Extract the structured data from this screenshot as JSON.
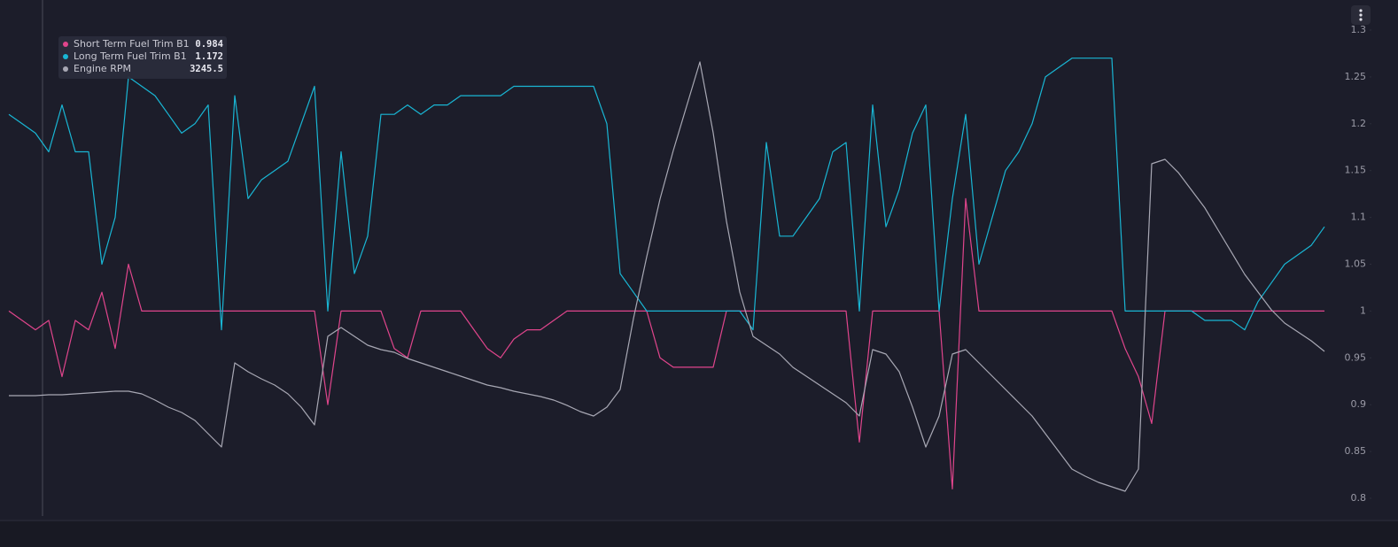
{
  "chart_data": {
    "type": "line",
    "ylim": [
      0.8,
      1.3
    ],
    "yticks": [
      0.8,
      0.85,
      0.9,
      0.95,
      1,
      1.05,
      1.1,
      1.15,
      1.2,
      1.25,
      1.3
    ],
    "y2lim": [
      2000,
      7660
    ],
    "grid": false,
    "series": [
      {
        "name": "Short Term Fuel Trim B1",
        "color": "#e0458c",
        "cursor_value": 0.984,
        "values": [
          1.0,
          0.99,
          0.98,
          0.99,
          0.93,
          0.99,
          0.98,
          1.02,
          0.96,
          1.05,
          1.0,
          1.0,
          1.0,
          1.0,
          1.0,
          1.0,
          1.0,
          1.0,
          1.0,
          1.0,
          1.0,
          1.0,
          1.0,
          1.0,
          0.9,
          1.0,
          1.0,
          1.0,
          1.0,
          0.96,
          0.95,
          1.0,
          1.0,
          1.0,
          1.0,
          0.98,
          0.96,
          0.95,
          0.97,
          0.98,
          0.98,
          0.99,
          1.0,
          1.0,
          1.0,
          1.0,
          1.0,
          1.0,
          1.0,
          0.95,
          0.94,
          0.94,
          0.94,
          0.94,
          1.0,
          1.0,
          1.0,
          1.0,
          1.0,
          1.0,
          1.0,
          1.0,
          1.0,
          1.0,
          0.86,
          1.0,
          1.0,
          1.0,
          1.0,
          1.0,
          1.0,
          0.81,
          1.12,
          1.0,
          1.0,
          1.0,
          1.0,
          1.0,
          1.0,
          1.0,
          1.0,
          1.0,
          1.0,
          1.0,
          0.96,
          0.93,
          0.88,
          1.0,
          1.0,
          1.0,
          1.0,
          1.0,
          1.0,
          1.0,
          1.0,
          1.0,
          1.0,
          1.0,
          1.0,
          1.0
        ]
      },
      {
        "name": "Long Term Fuel Trim B1",
        "color": "#19b6d4",
        "cursor_value": 1.172,
        "values": [
          1.21,
          1.2,
          1.19,
          1.17,
          1.22,
          1.17,
          1.17,
          1.05,
          1.1,
          1.25,
          1.24,
          1.23,
          1.21,
          1.19,
          1.2,
          1.22,
          0.98,
          1.23,
          1.12,
          1.14,
          1.15,
          1.16,
          1.2,
          1.24,
          1.0,
          1.17,
          1.04,
          1.08,
          1.21,
          1.21,
          1.22,
          1.21,
          1.22,
          1.22,
          1.23,
          1.23,
          1.23,
          1.23,
          1.24,
          1.24,
          1.24,
          1.24,
          1.24,
          1.24,
          1.24,
          1.2,
          1.04,
          1.02,
          1.0,
          1.0,
          1.0,
          1.0,
          1.0,
          1.0,
          1.0,
          1.0,
          0.98,
          1.18,
          1.08,
          1.08,
          1.1,
          1.12,
          1.17,
          1.18,
          1.0,
          1.22,
          1.09,
          1.13,
          1.19,
          1.22,
          1.0,
          1.12,
          1.21,
          1.05,
          1.1,
          1.15,
          1.17,
          1.2,
          1.25,
          1.26,
          1.27,
          1.27,
          1.27,
          1.27,
          1.0,
          1.0,
          1.0,
          1.0,
          1.0,
          1.0,
          0.99,
          0.99,
          0.99,
          0.98,
          1.01,
          1.03,
          1.05,
          1.06,
          1.07,
          1.09
        ]
      },
      {
        "name": "Engine RPM",
        "color": "#a8a8b4",
        "axis": "y2",
        "cursor_value": 3245.5,
        "values": [
          3241,
          3241,
          3241,
          3252,
          3252,
          3263,
          3273,
          3284,
          3295,
          3295,
          3263,
          3188,
          3102,
          3038,
          2942,
          2781,
          2621,
          3637,
          3530,
          3444,
          3369,
          3263,
          3102,
          2888,
          3958,
          4065,
          3958,
          3851,
          3797,
          3765,
          3690,
          3637,
          3584,
          3530,
          3476,
          3423,
          3369,
          3337,
          3295,
          3263,
          3230,
          3188,
          3124,
          3049,
          2995,
          3102,
          3316,
          4172,
          4921,
          5617,
          6205,
          6740,
          7275,
          6419,
          5349,
          4493,
          3958,
          3851,
          3744,
          3584,
          3476,
          3369,
          3263,
          3156,
          2995,
          3797,
          3744,
          3530,
          3102,
          2621,
          2995,
          3744,
          3797,
          3637,
          3476,
          3316,
          3156,
          2995,
          2781,
          2567,
          2353,
          2267,
          2193,
          2139,
          2086,
          2353,
          6044,
          6098,
          5938,
          5724,
          5510,
          5242,
          4975,
          4707,
          4493,
          4279,
          4118,
          4011,
          3904,
          3776
        ]
      }
    ]
  }
}
